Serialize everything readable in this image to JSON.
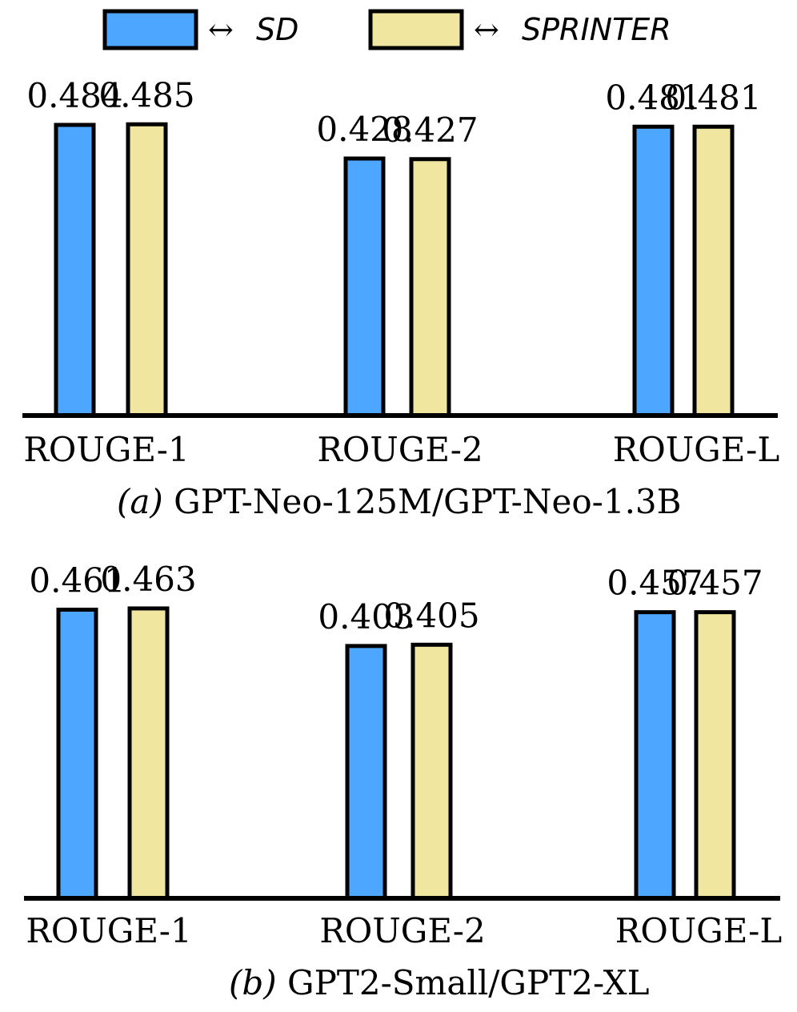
{
  "legend": [
    {
      "key": "sd",
      "arrow": "↔",
      "name": "SD",
      "color": "#4da6ff"
    },
    {
      "key": "sprinter",
      "arrow": "↔",
      "name": "SPRINTER",
      "color": "#f0e6a0"
    }
  ],
  "chart_data": [
    {
      "type": "bar",
      "caption_letter": "(a)",
      "caption_text": "GPT-Neo-125M/GPT-Neo-1.3B",
      "categories": [
        "ROUGE-1",
        "ROUGE-2",
        "ROUGE-L"
      ],
      "series": [
        {
          "name": "SD",
          "values": [
            0.484,
            0.428,
            0.481
          ],
          "labels": [
            "0.484",
            "0.428",
            "0.481"
          ]
        },
        {
          "name": "SPRINTER",
          "values": [
            0.485,
            0.427,
            0.481
          ],
          "labels": [
            "0.485",
            "0.427",
            "0.481"
          ]
        }
      ],
      "ylim": [
        0,
        0.5
      ]
    },
    {
      "type": "bar",
      "caption_letter": "(b)",
      "caption_text": "GPT2-Small/GPT2-XL",
      "categories": [
        "ROUGE-1",
        "ROUGE-2",
        "ROUGE-L"
      ],
      "series": [
        {
          "name": "SD",
          "values": [
            0.461,
            0.403,
            0.457
          ],
          "labels": [
            "0.461",
            "0.403",
            "0.457"
          ]
        },
        {
          "name": "SPRINTER",
          "values": [
            0.463,
            0.405,
            0.457
          ],
          "labels": [
            "0.463",
            "0.405",
            "0.457"
          ]
        }
      ],
      "ylim": [
        0,
        0.48
      ]
    }
  ]
}
